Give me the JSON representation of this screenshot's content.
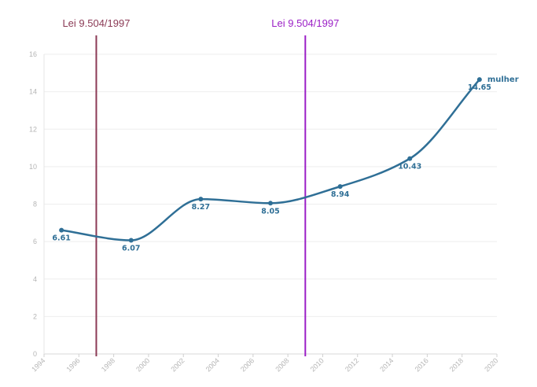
{
  "chart_data": {
    "type": "line",
    "title": "",
    "xlabel": "",
    "ylabel": "",
    "xlim": [
      1994,
      2020
    ],
    "ylim": [
      0,
      16
    ],
    "x_ticks": [
      "1994",
      "1996",
      "1998",
      "2000",
      "2002",
      "2004",
      "2006",
      "2008",
      "2010",
      "2012",
      "2014",
      "2016",
      "2018",
      "2020"
    ],
    "y_ticks": [
      "0",
      "2",
      "4",
      "6",
      "8",
      "10",
      "12",
      "14",
      "16"
    ],
    "grid": true,
    "series": [
      {
        "name": "mulher",
        "color": "#2f6f96",
        "x": [
          1995,
          1999,
          2003,
          2007,
          2011,
          2015,
          2019
        ],
        "values": [
          6.61,
          6.07,
          8.27,
          8.05,
          8.94,
          10.43,
          14.65
        ],
        "labels": [
          "6.61",
          "6.07",
          "8.27",
          "8.05",
          "8.94",
          "10.43",
          "14.65"
        ]
      }
    ],
    "annotations": [
      {
        "label": "Lei 9.504/1997",
        "x": 1997,
        "color": "#8b3a55"
      },
      {
        "label": "Lei 9.504/1997",
        "x": 2009,
        "color": "#9b1fc6"
      }
    ]
  }
}
